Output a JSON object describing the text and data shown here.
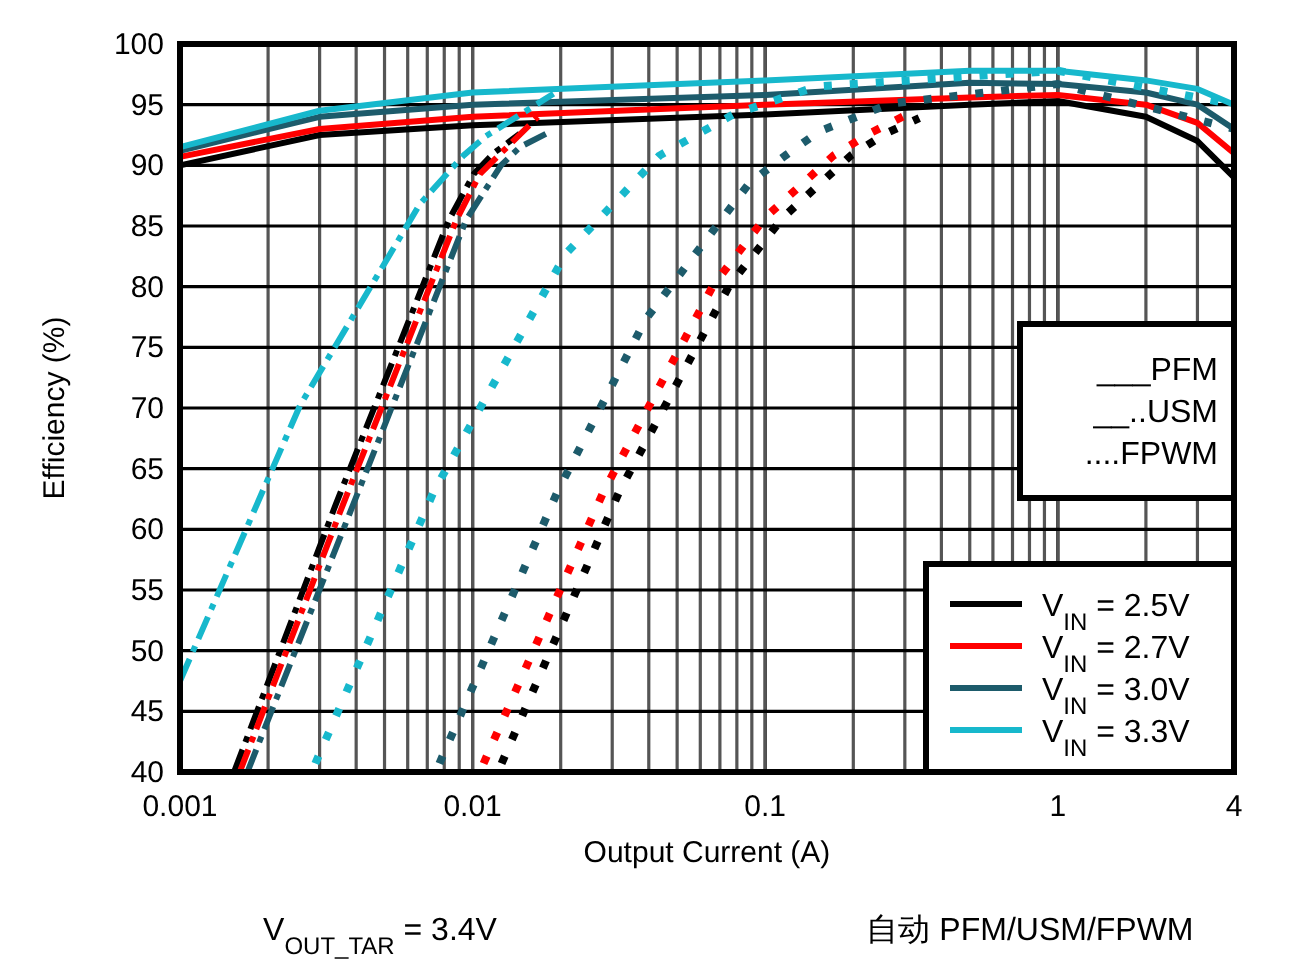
{
  "chart_data": {
    "type": "line",
    "xlabel": "Output Current (A)",
    "ylabel": "Efficiency (%)",
    "log": "x",
    "xlim": [
      0.001,
      4
    ],
    "ylim": [
      40,
      100
    ],
    "xticks": [
      0.001,
      0.01,
      0.1,
      1,
      4
    ],
    "yticks": [
      40,
      45,
      50,
      55,
      60,
      65,
      70,
      75,
      80,
      85,
      90,
      95,
      100
    ],
    "grid": true,
    "legend": "bottom right",
    "annotations": [
      "___PFM",
      "__..USM",
      "....FPWM",
      "V$_{OUT_TAR}$ = 3.4V",
      "自动 PFM/USM/FPWM"
    ],
    "series": [
      {
        "name": "V$_{IN}$ = 2.5V",
        "color": "#000000",
        "line_style": "solid",
        "x": [
          0.001,
          0.003,
          0.01,
          0.1,
          0.5,
          1,
          2,
          3,
          4
        ],
        "values": [
          90,
          92.5,
          93.3,
          94.2,
          95,
          95.3,
          94,
          92,
          89
        ]
      },
      {
        "name": "V$_{IN}$ = 2.7V",
        "color": "#ff0000",
        "line_style": "solid",
        "x": [
          0.001,
          0.003,
          0.01,
          0.1,
          0.5,
          1,
          2,
          3,
          4
        ],
        "values": [
          90.7,
          93,
          94,
          95,
          95.6,
          95.8,
          95,
          93.5,
          91
        ]
      },
      {
        "name": "V$_{IN}$ = 3.0V",
        "color": "#1d5b6b",
        "line_style": "solid",
        "x": [
          0.001,
          0.003,
          0.01,
          0.1,
          0.5,
          1,
          2,
          3,
          4
        ],
        "values": [
          91.2,
          94,
          95,
          95.8,
          96.8,
          96.7,
          96,
          95,
          93
        ]
      },
      {
        "name": "V$_{IN}$ = 3.3V",
        "color": "#17b8cc",
        "line_style": "solid",
        "x": [
          0.001,
          0.003,
          0.01,
          0.1,
          0.5,
          1,
          2,
          3,
          4
        ],
        "values": [
          91.5,
          94.5,
          96,
          97,
          97.8,
          97.8,
          97,
          96.3,
          95
        ]
      },
      {
        "color": "#000000",
        "line_style": "dashed",
        "x": [
          0.00153,
          0.0034,
          0.0083,
          0.0101,
          0.0118,
          0.0145
        ],
        "values": [
          40,
          62,
          85.5,
          89.3,
          91,
          92.6
        ]
      },
      {
        "color": "#ff0000",
        "line_style": "dashed",
        "x": [
          0.0016,
          0.0036,
          0.0088,
          0.0106,
          0.0125,
          0.0167
        ],
        "values": [
          40,
          62,
          85.5,
          89.3,
          91,
          94
        ]
      },
      {
        "color": "#1d5b6b",
        "line_style": "dashed",
        "x": [
          0.0017,
          0.0039,
          0.0095,
          0.0125,
          0.0145,
          0.0178
        ],
        "values": [
          40,
          62,
          85.5,
          90,
          91.5,
          92.6
        ]
      },
      {
        "color": "#17b8cc",
        "line_style": "dashed",
        "x": [
          0.001,
          0.00257,
          0.0066,
          0.0093,
          0.0111,
          0.0189
        ],
        "values": [
          47.5,
          70.2,
          86.8,
          90.8,
          92.4,
          95.9
        ]
      },
      {
        "color": "#000000",
        "line_style": "dotted",
        "x": [
          0.01256,
          0.0317,
          0.0754,
          0.115,
          0.196,
          0.257,
          0.336
        ],
        "values": [
          40.7,
          63.1,
          80.1,
          85.7,
          90.8,
          92.6,
          93.9
        ]
      },
      {
        "color": "#ff0000",
        "line_style": "dotted",
        "x": [
          0.0109,
          0.028,
          0.0664,
          0.1,
          0.171,
          0.226,
          0.3
        ],
        "values": [
          40.7,
          63.1,
          80.1,
          85.7,
          90.8,
          92.6,
          94.1
        ]
      },
      {
        "color": "#1d5b6b",
        "line_style": "dotted",
        "x": [
          0.0077,
          0.0195,
          0.039,
          0.088,
          0.117,
          0.153,
          0.269,
          1,
          4
        ],
        "values": [
          40.7,
          63.1,
          77.3,
          88.5,
          90.8,
          92.8,
          95.1,
          96.7,
          93
        ]
      },
      {
        "color": "#17b8cc",
        "line_style": "dotted",
        "x": [
          0.0029,
          0.00736,
          0.0208,
          0.0435,
          0.0777,
          0.15,
          1,
          4
        ],
        "values": [
          40.7,
          63.1,
          82.7,
          90.8,
          94.2,
          96.5,
          97.8,
          95
        ]
      }
    ]
  }
}
